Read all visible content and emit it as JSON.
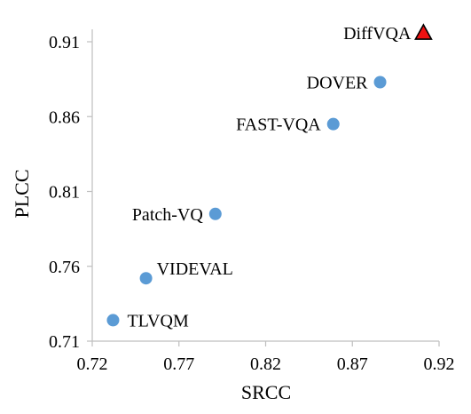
{
  "chart_data": {
    "type": "scatter",
    "title": "",
    "xlabel": "SRCC",
    "ylabel": "PLCC",
    "xlim": [
      0.72,
      0.92
    ],
    "ylim": [
      0.71,
      0.91
    ],
    "xticks": [
      "0.72",
      "0.77",
      "0.82",
      "0.87",
      "0.92"
    ],
    "yticks": [
      "0.71",
      "0.76",
      "0.81",
      "0.86",
      "0.91"
    ],
    "grid": false,
    "legend": "none",
    "points": [
      {
        "label": "TLVQM",
        "x": 0.732,
        "y": 0.724,
        "marker": "circle",
        "color": "#5b9bd5",
        "label_side": "right"
      },
      {
        "label": "VIDEVAL",
        "x": 0.751,
        "y": 0.752,
        "marker": "circle",
        "color": "#5b9bd5",
        "label_side": "above-right"
      },
      {
        "label": "Patch-VQ",
        "x": 0.791,
        "y": 0.795,
        "marker": "circle",
        "color": "#5b9bd5",
        "label_side": "left"
      },
      {
        "label": "FAST-VQA",
        "x": 0.859,
        "y": 0.855,
        "marker": "circle",
        "color": "#5b9bd5",
        "label_side": "left"
      },
      {
        "label": "DOVER",
        "x": 0.886,
        "y": 0.883,
        "marker": "circle",
        "color": "#5b9bd5",
        "label_side": "left"
      },
      {
        "label": "DiffVQA",
        "x": 0.911,
        "y": 0.916,
        "marker": "triangle",
        "color": "#ee1111",
        "label_side": "left"
      }
    ]
  }
}
